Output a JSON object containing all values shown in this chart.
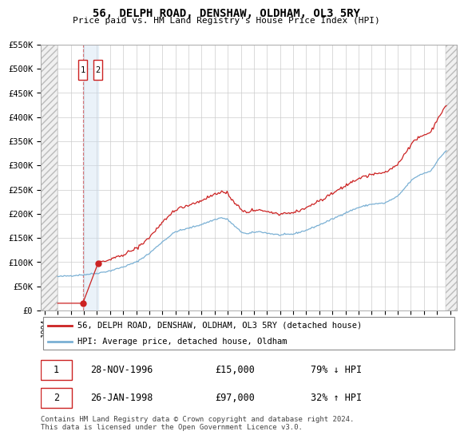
{
  "title": "56, DELPH ROAD, DENSHAW, OLDHAM, OL3 5RY",
  "subtitle": "Price paid vs. HM Land Registry's House Price Index (HPI)",
  "ylim": [
    0,
    550000
  ],
  "xlim_left": 1993.7,
  "xlim_right": 2025.5,
  "yticks": [
    0,
    50000,
    100000,
    150000,
    200000,
    250000,
    300000,
    350000,
    400000,
    450000,
    500000,
    550000
  ],
  "ytick_labels": [
    "£0",
    "£50K",
    "£100K",
    "£150K",
    "£200K",
    "£250K",
    "£300K",
    "£350K",
    "£400K",
    "£450K",
    "£500K",
    "£550K"
  ],
  "xticks": [
    1994,
    1995,
    1996,
    1997,
    1998,
    1999,
    2000,
    2001,
    2002,
    2003,
    2004,
    2005,
    2006,
    2007,
    2008,
    2009,
    2010,
    2011,
    2012,
    2013,
    2014,
    2015,
    2016,
    2017,
    2018,
    2019,
    2020,
    2021,
    2022,
    2023,
    2024,
    2025
  ],
  "transaction1": {
    "date": "28-NOV-1996",
    "price": 15000,
    "year": 1996.92,
    "label": "1",
    "pct": "79% ↓ HPI"
  },
  "transaction2": {
    "date": "26-JAN-1998",
    "price": 97000,
    "year": 1998.07,
    "label": "2",
    "pct": "32% ↑ HPI"
  },
  "hpi_line_color": "#7ab0d4",
  "price_line_color": "#cc2222",
  "background_color": "#ffffff",
  "grid_color": "#cccccc",
  "legend_line1": "56, DELPH ROAD, DENSHAW, OLDHAM, OL3 5RY (detached house)",
  "legend_line2": "HPI: Average price, detached house, Oldham",
  "footer": "Contains HM Land Registry data © Crown copyright and database right 2024.\nThis data is licensed under the Open Government Licence v3.0.",
  "hatch_left_end": 1995.0,
  "hatch_right_start": 2024.67
}
